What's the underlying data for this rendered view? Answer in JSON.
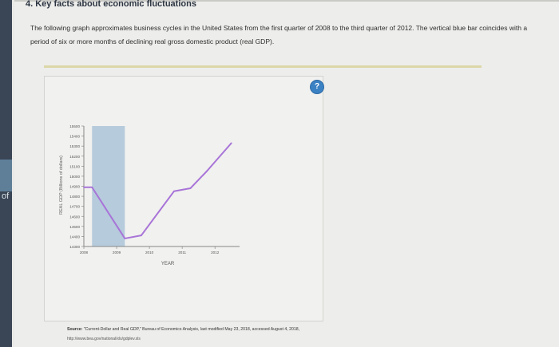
{
  "page": {
    "heading": "4. Key facts about economic fluctuations",
    "intro": "The following graph approximates business cycles in the United States from the first quarter of 2008 to the third quarter of 2012. The vertical blue bar coincides with a period of six or more months of declining real gross domestic product (real GDP).",
    "help_symbol": "?",
    "source_label": "Source:",
    "source_text": "\"Current-Dollar and Real GDP,\" Bureau of Economics Analysis, last modified May 23, 2018, accessed August 4, 2018,",
    "source_url": "http://www.bea.gov/national/xls/gdplev.xls",
    "left_fragment": "of"
  },
  "chart_data": {
    "type": "line",
    "xlabel": "YEAR",
    "ylabel": "REAL GDP (Billions of dollars)",
    "x_ticks": [
      "2008",
      "2009",
      "2010",
      "2011",
      "2012"
    ],
    "y_ticks": [
      "15500",
      "15400",
      "15300",
      "15200",
      "15100",
      "15000",
      "14900",
      "14800",
      "14700",
      "14600",
      "14500",
      "14400",
      "14300"
    ],
    "ylim": [
      14300,
      15500
    ],
    "xlim": [
      2008,
      2012.75
    ],
    "recession_band": [
      2008.25,
      2009.25
    ],
    "line_color": "#a874d8",
    "band_color": "#b6cbdc",
    "series": [
      {
        "x": [
          2008,
          2008.25,
          2009.25,
          2009.75,
          2010.75,
          2011.25,
          2011.75,
          2012.5
        ],
        "y": [
          14890,
          14890,
          14380,
          14410,
          14850,
          14880,
          15050,
          15330
        ]
      }
    ]
  }
}
